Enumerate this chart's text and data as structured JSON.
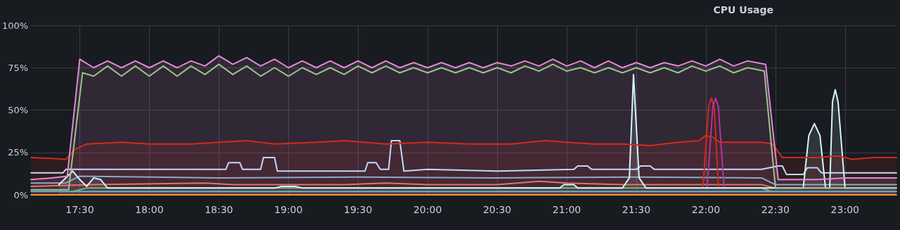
{
  "chart_data": {
    "type": "line",
    "title": "CPU Usage",
    "grid": true,
    "marker": "none",
    "line_style": "solid",
    "xlim": [
      17.15,
      23.37
    ],
    "xticks": [
      {
        "value": 17.5,
        "label": "17:30"
      },
      {
        "value": 18,
        "label": "18:00"
      },
      {
        "value": 18.5,
        "label": "18:30"
      },
      {
        "value": 19,
        "label": "19:00"
      },
      {
        "value": 19.5,
        "label": "19:30"
      },
      {
        "value": 20,
        "label": "20:00"
      },
      {
        "value": 20.5,
        "label": "20:30"
      },
      {
        "value": 21,
        "label": "21:00"
      },
      {
        "value": 21.5,
        "label": "21:30"
      },
      {
        "value": 22,
        "label": "22:00"
      },
      {
        "value": 22.5,
        "label": "22:30"
      },
      {
        "value": 23,
        "label": "23:00"
      }
    ],
    "ylim": [
      0,
      100
    ],
    "yticks": [
      {
        "value": 0,
        "label": "0%"
      },
      {
        "value": 25,
        "label": "25%"
      },
      {
        "value": 50,
        "label": "50%"
      },
      {
        "value": 75,
        "label": "75%"
      },
      {
        "value": 100,
        "label": "100%"
      }
    ],
    "series": [
      {
        "type": "line",
        "color": "#ff9830",
        "x": [
          17.15,
          23.37
        ],
        "values": [
          0,
          0
        ]
      },
      {
        "type": "line",
        "color": "#5fb8d0",
        "x": [
          17.15,
          23.37
        ],
        "values": [
          2,
          2
        ]
      },
      {
        "type": "line",
        "color": "#73bf69",
        "x": [
          17.45,
          17.55,
          22.4,
          22.47
        ],
        "values": [
          2,
          4,
          4,
          2
        ]
      },
      {
        "type": "line",
        "color": "#e0736a",
        "x": [
          17.15,
          17.6,
          18.4,
          18.6,
          19.0,
          19.4,
          19.7,
          20.0,
          20.5,
          20.8,
          21.0,
          21.4,
          22.0,
          22.4,
          22.5,
          23.37
        ],
        "values": [
          5,
          6,
          7,
          6,
          6,
          6,
          7,
          6,
          6,
          8,
          7,
          6,
          6,
          6,
          4,
          4
        ]
      },
      {
        "type": "line",
        "color": "#8ea8c8",
        "x": [
          17.15,
          17.4,
          17.5,
          18.5,
          19.5,
          20.5,
          21.5,
          22.4,
          22.5,
          23.37
        ],
        "values": [
          7,
          7,
          11,
          10,
          10.5,
          10,
          10.5,
          10,
          6,
          6
        ]
      },
      {
        "type": "line",
        "color": "#c0d8ff",
        "x": [
          17.15,
          17.38,
          17.4,
          18.55,
          18.57,
          18.65,
          18.67,
          18.8,
          18.82,
          18.9,
          18.92,
          19.55,
          19.57,
          19.63,
          19.66,
          19.72,
          19.74,
          19.8,
          19.83,
          20.0,
          20.5,
          21.05,
          21.08,
          21.15,
          21.18,
          21.5,
          21.53,
          21.6,
          21.63,
          22.4,
          22.52,
          22.55,
          22.58,
          22.7,
          22.73,
          22.8,
          22.83,
          23.37
        ],
        "values": [
          13,
          13,
          15,
          15,
          19,
          19,
          15,
          15,
          22,
          22,
          14,
          14,
          19,
          19,
          15,
          15,
          32,
          32,
          14,
          15,
          14,
          15,
          17,
          17,
          15,
          15,
          17,
          17,
          15,
          15,
          17,
          17,
          12,
          12,
          16,
          16,
          13,
          13
        ]
      },
      {
        "type": "area",
        "color": "#d3f6fc",
        "x": [
          17.35,
          17.45,
          17.5,
          17.55,
          17.6,
          17.65,
          17.7,
          18.9,
          18.95,
          19.05,
          19.1,
          20.95,
          20.98,
          21.05,
          21.08,
          21.4,
          21.45,
          21.48,
          21.52,
          21.57,
          22.7,
          22.74,
          22.78,
          22.82,
          22.86,
          22.89,
          22.91,
          22.93,
          22.95,
          23.0,
          23.37
        ],
        "values": [
          6,
          14,
          9,
          5,
          10,
          9,
          4,
          4,
          5,
          5,
          4,
          4,
          6,
          6,
          4,
          4,
          10,
          71,
          10,
          4,
          4,
          35,
          42,
          35,
          4,
          4,
          55,
          62,
          55,
          4,
          4
        ]
      },
      {
        "type": "line",
        "color": "#d42a1c",
        "x": [
          21.98,
          22.02,
          22.04,
          22.06,
          22.09
        ],
        "values": [
          5,
          52,
          57,
          52,
          5
        ]
      },
      {
        "type": "line",
        "color": "#b8329c",
        "x": [
          22.01,
          22.05,
          22.07,
          22.09,
          22.13
        ],
        "values": [
          5,
          52,
          57,
          52,
          5
        ]
      },
      {
        "type": "area",
        "color": "#d42a1c",
        "x": [
          17.15,
          17.3,
          17.4,
          17.47,
          17.55,
          17.8,
          18.0,
          18.3,
          18.5,
          18.7,
          18.9,
          19.2,
          19.4,
          19.55,
          19.7,
          20.0,
          20.3,
          20.6,
          20.85,
          21.0,
          21.2,
          21.4,
          21.6,
          21.8,
          21.95,
          22.0,
          22.05,
          22.1,
          22.4,
          22.48,
          22.55,
          22.8,
          22.95,
          23.05,
          23.2,
          23.37
        ],
        "values": [
          22,
          21.5,
          21,
          27,
          30,
          31,
          30,
          30,
          31,
          32,
          30,
          31,
          32,
          31,
          30,
          31,
          30,
          30,
          32,
          31,
          30,
          30,
          29,
          31,
          32,
          35,
          34,
          31,
          31,
          30,
          22,
          22,
          23,
          21,
          22,
          22
        ]
      },
      {
        "type": "line",
        "color": "#9ac48a",
        "x": [
          17.15,
          17.42,
          17.52,
          17.6,
          17.7,
          17.8,
          17.9,
          18.0,
          18.1,
          18.2,
          18.3,
          18.4,
          18.5,
          18.6,
          18.7,
          18.8,
          18.9,
          19.0,
          19.1,
          19.2,
          19.3,
          19.4,
          19.5,
          19.6,
          19.7,
          19.8,
          19.9,
          20.0,
          20.1,
          20.2,
          20.3,
          20.4,
          20.5,
          20.6,
          20.7,
          20.8,
          20.9,
          21.0,
          21.1,
          21.2,
          21.3,
          21.4,
          21.5,
          21.6,
          21.7,
          21.8,
          21.9,
          22.0,
          22.1,
          22.2,
          22.3,
          22.42,
          22.5,
          23.37
        ],
        "values": [
          3,
          3,
          72,
          70,
          76,
          70,
          76,
          70,
          76,
          70,
          76,
          71,
          77,
          71,
          76,
          70,
          75,
          70,
          75,
          71,
          75,
          71,
          76,
          72,
          76,
          72,
          75,
          72,
          75,
          72,
          75,
          72,
          75,
          72,
          76,
          73,
          77,
          73,
          75,
          72,
          75,
          72,
          75,
          72,
          75,
          72,
          76,
          73,
          76,
          72,
          75,
          73,
          4,
          4
        ]
      },
      {
        "type": "area",
        "color": "#e08ad6",
        "x": [
          17.15,
          17.3,
          17.41,
          17.5,
          17.6,
          17.7,
          17.8,
          17.9,
          18.0,
          18.1,
          18.2,
          18.3,
          18.4,
          18.5,
          18.6,
          18.7,
          18.8,
          18.9,
          19.0,
          19.1,
          19.2,
          19.3,
          19.4,
          19.5,
          19.6,
          19.7,
          19.8,
          19.9,
          20.0,
          20.1,
          20.2,
          20.3,
          20.4,
          20.5,
          20.6,
          20.7,
          20.8,
          20.9,
          21.0,
          21.1,
          21.2,
          21.3,
          21.4,
          21.5,
          21.6,
          21.7,
          21.8,
          21.9,
          22.0,
          22.1,
          22.2,
          22.3,
          22.43,
          22.52,
          22.8,
          23.0,
          23.37
        ],
        "values": [
          9,
          10,
          11,
          80,
          75,
          79,
          75,
          79,
          75,
          79,
          75,
          79,
          76,
          82,
          77,
          81,
          76,
          80,
          75,
          79,
          75,
          79,
          75,
          79,
          75,
          79,
          75,
          78,
          75,
          78,
          75,
          78,
          75,
          78,
          76,
          79,
          76,
          80,
          76,
          79,
          75,
          79,
          75,
          78,
          75,
          78,
          76,
          79,
          76,
          80,
          76,
          79,
          77,
          9,
          9,
          10,
          10
        ]
      }
    ]
  }
}
